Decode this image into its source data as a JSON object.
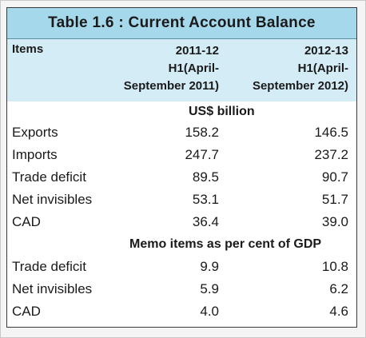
{
  "title": "Table 1.6 : Current Account Balance",
  "header": {
    "items": "Items",
    "col1": [
      "2011-12",
      "H1(April-",
      "September 2011)"
    ],
    "col2": [
      "2012-13",
      "H1(April-",
      "September 2012)"
    ]
  },
  "section1": {
    "label": "US$ billion",
    "rows": [
      {
        "label": "Exports",
        "v1": "158.2",
        "v2": "146.5"
      },
      {
        "label": "Imports",
        "v1": "247.7",
        "v2": "237.2"
      },
      {
        "label": "Trade deficit",
        "v1": "89.5",
        "v2": "90.7"
      },
      {
        "label": "Net invisibles",
        "v1": "53.1",
        "v2": "51.7"
      },
      {
        "label": "CAD",
        "v1": "36.4",
        "v2": "39.0"
      }
    ]
  },
  "section2": {
    "label": "Memo items as per cent of GDP",
    "rows": [
      {
        "label": "Trade deficit",
        "v1": "9.9",
        "v2": "10.8"
      },
      {
        "label": "Net invisibles",
        "v1": "5.9",
        "v2": "6.2"
      },
      {
        "label": "CAD",
        "v1": "4.0",
        "v2": "4.6"
      }
    ]
  },
  "colors": {
    "title_bg": "#a6d8ec",
    "header_bg": "#d4ecf6"
  }
}
